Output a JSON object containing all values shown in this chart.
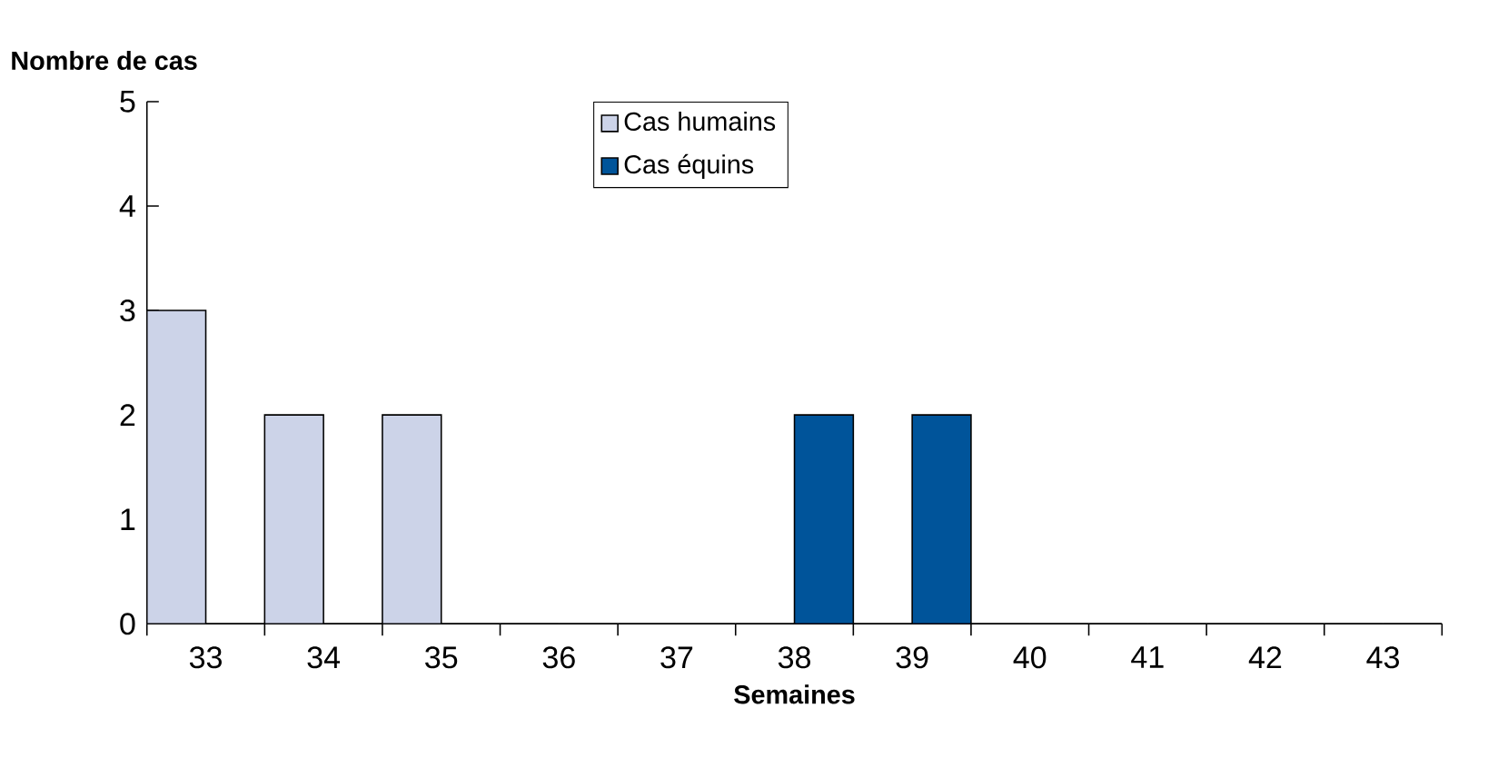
{
  "chart_data": {
    "type": "bar",
    "ylabel": "Nombre de cas",
    "xlabel": "Semaines",
    "categories": [
      "33",
      "34",
      "35",
      "36",
      "37",
      "38",
      "39",
      "40",
      "41",
      "42",
      "43"
    ],
    "series": [
      {
        "name": "Cas humains",
        "color": "#ccd3e8",
        "values": [
          3,
          2,
          2,
          0,
          0,
          0,
          0,
          0,
          0,
          0,
          0
        ]
      },
      {
        "name": "Cas équins",
        "color": "#00549a",
        "values": [
          0,
          0,
          0,
          0,
          0,
          2,
          2,
          0,
          0,
          0,
          0
        ]
      }
    ],
    "ylim": [
      0,
      5
    ],
    "yticks": [
      0,
      1,
      2,
      3,
      4,
      5
    ],
    "grid": false,
    "legend": "top"
  }
}
